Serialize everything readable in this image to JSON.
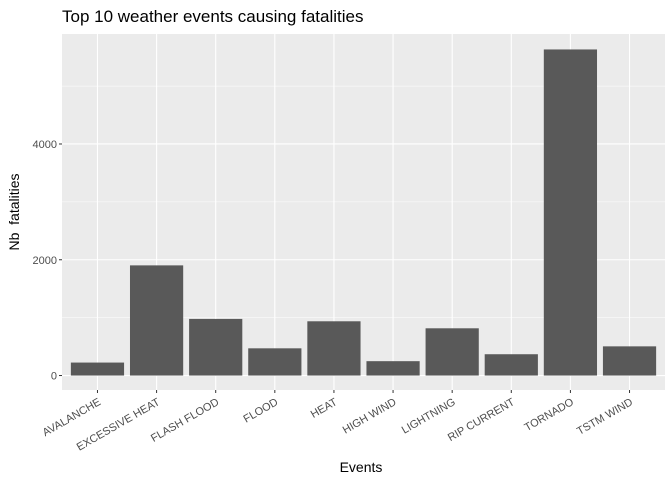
{
  "chart_data": {
    "type": "bar",
    "title": "Top 10 weather events causing fatalities",
    "xlabel": "Events",
    "ylabel": "Nb  fatalities",
    "categories": [
      "AVALANCHE",
      "EXCESSIVE HEAT",
      "FLASH FLOOD",
      "FLOOD",
      "HEAT",
      "HIGH WIND",
      "LIGHTNING",
      "RIP CURRENT",
      "TORNADO",
      "TSTM WIND"
    ],
    "values": [
      224,
      1903,
      978,
      470,
      937,
      248,
      816,
      368,
      5633,
      504
    ],
    "ylim": [
      -250,
      5900
    ],
    "yticks": [
      0,
      2000,
      4000
    ],
    "grid": true,
    "legend": "none",
    "colors": {
      "bar": "#595959",
      "panel": "#ebebeb",
      "grid_major": "#ffffff",
      "tick_label": "#4d4d4d"
    }
  }
}
